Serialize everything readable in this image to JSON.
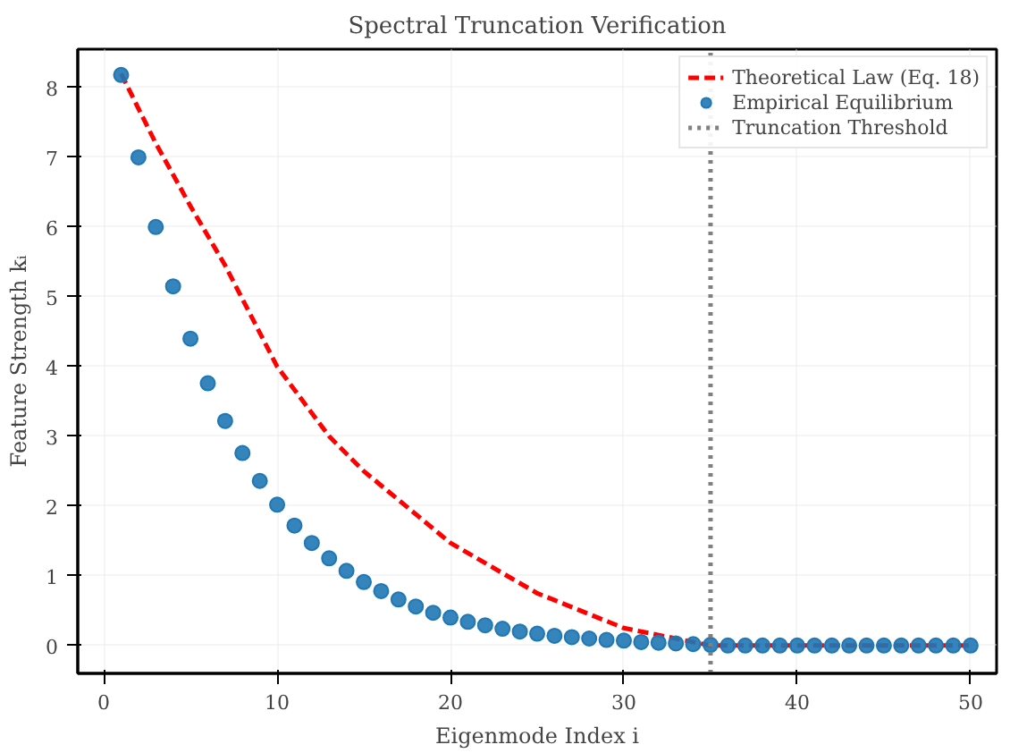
{
  "chart_data": {
    "type": "scatter",
    "title": "Spectral Truncation Verification",
    "xlabel": "Eigenmode Index i",
    "ylabel": "Feature Strength kᵢ",
    "xlim": [
      -1.5,
      51.5
    ],
    "ylim": [
      -0.4,
      8.55
    ],
    "xticks": [
      0,
      10,
      20,
      30,
      40,
      50
    ],
    "yticks": [
      0,
      1,
      2,
      3,
      4,
      5,
      6,
      7,
      8
    ],
    "grid": true,
    "legend": "top right",
    "series": [
      {
        "name": "Theoretical Law (Eq. 18)",
        "type": "line",
        "line_style": "dashed",
        "marker": "none",
        "color": "#ff0000",
        "x": [
          1,
          3,
          5,
          7,
          10,
          13,
          15,
          20,
          25,
          30,
          35,
          40,
          45,
          50
        ],
        "values": [
          8.2,
          7.2,
          6.3,
          5.45,
          4.0,
          3.0,
          2.5,
          1.47,
          0.75,
          0.25,
          0.0,
          0.0,
          0.0,
          0.0
        ]
      },
      {
        "name": "Empirical Equilibrium",
        "marker": "circle",
        "color": "#1f77b4",
        "x": [
          1,
          2,
          3,
          4,
          5,
          6,
          7,
          8,
          9,
          10,
          11,
          12,
          13,
          14,
          15,
          16,
          17,
          18,
          19,
          20,
          21,
          22,
          23,
          24,
          25,
          26,
          27,
          28,
          29,
          30,
          31,
          32,
          33,
          34,
          35,
          36,
          37,
          38,
          39,
          40,
          41,
          42,
          43,
          44,
          45,
          46,
          47,
          48,
          49,
          50
        ],
        "values": [
          8.18,
          7.0,
          6.0,
          5.15,
          4.4,
          3.76,
          3.22,
          2.76,
          2.36,
          2.02,
          1.72,
          1.47,
          1.25,
          1.07,
          0.91,
          0.78,
          0.66,
          0.56,
          0.47,
          0.4,
          0.34,
          0.29,
          0.24,
          0.2,
          0.17,
          0.14,
          0.12,
          0.1,
          0.08,
          0.07,
          0.05,
          0.04,
          0.03,
          0.02,
          0.01,
          0,
          0,
          0,
          0,
          0,
          0,
          0,
          0,
          0,
          0,
          0,
          0,
          0,
          0,
          0
        ]
      }
    ],
    "ref_lines": [
      {
        "axis": "x",
        "value": 35,
        "label": "Truncation Threshold",
        "color": "#808080",
        "line_style": "dotted"
      }
    ]
  }
}
